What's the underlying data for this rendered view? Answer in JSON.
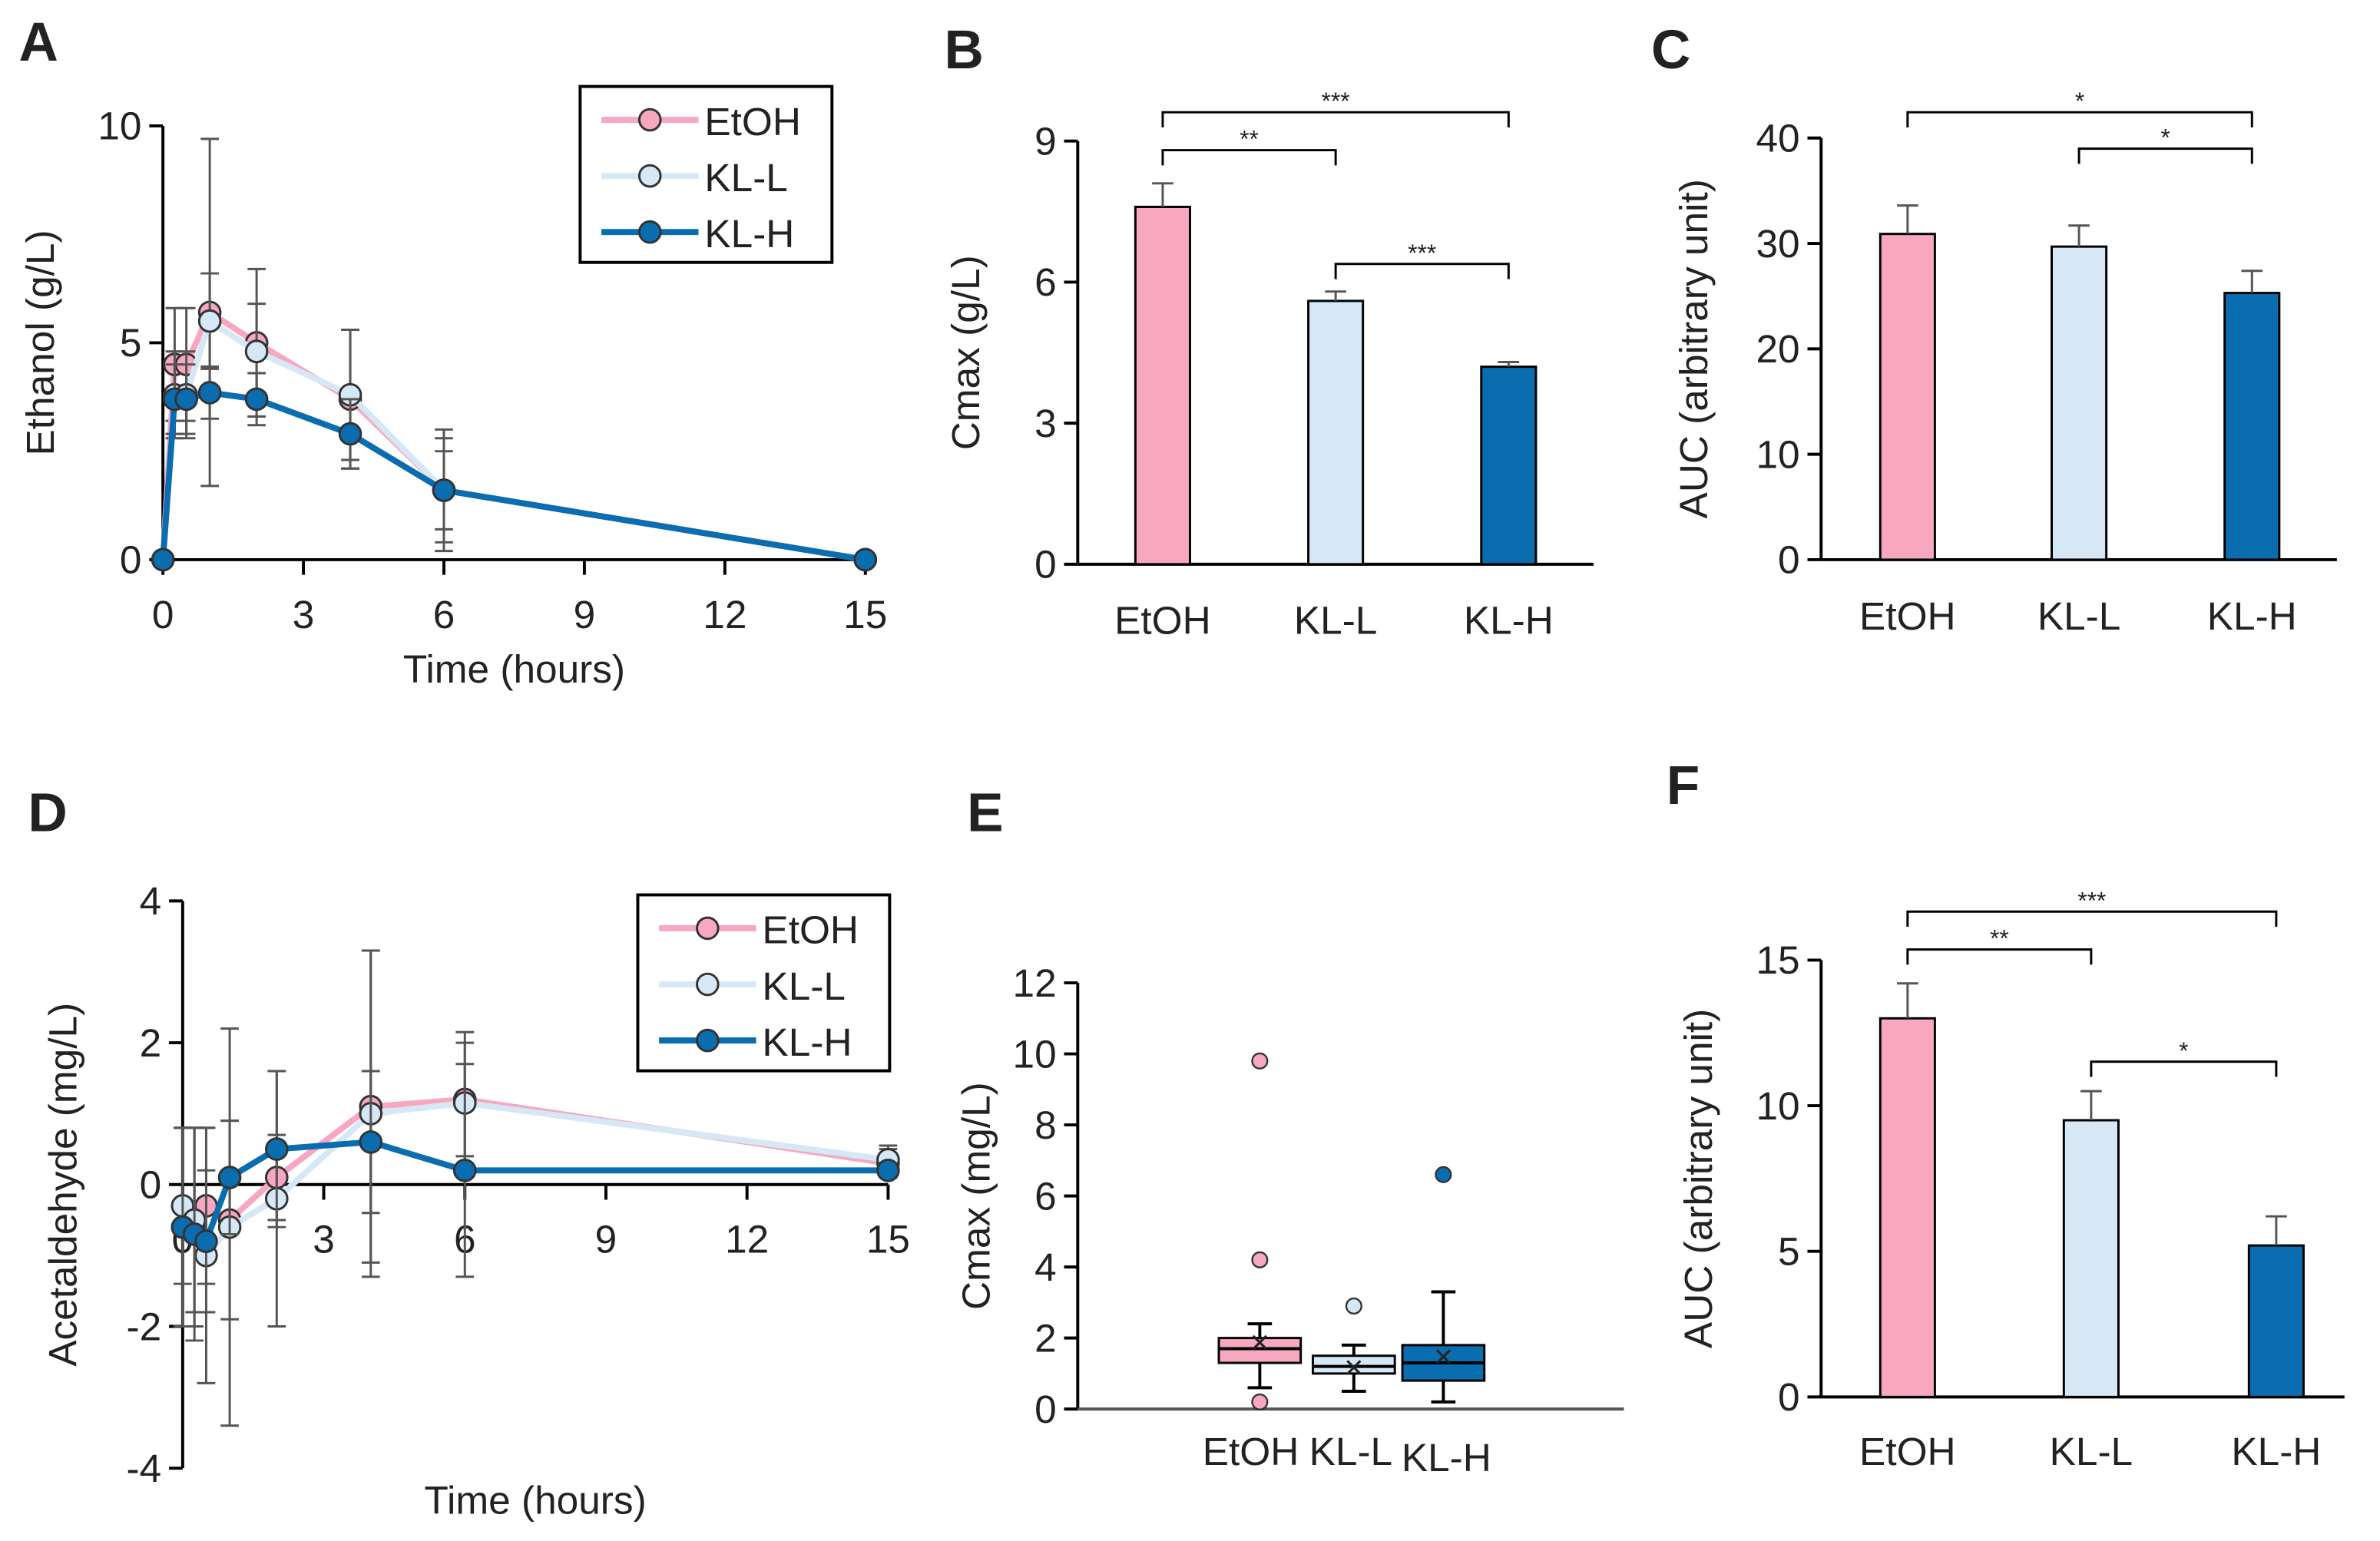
{
  "colors": {
    "EtOH": "#f7a8c0",
    "KL-L": "#d6e8f6",
    "KL-H": "#0a6db0",
    "err": "#555555"
  },
  "chart_data": [
    {
      "panel": "A",
      "type": "line",
      "xlabel": "Time (hours)",
      "ylabel": "Ethanol (g/L)",
      "xlim": [
        0,
        15
      ],
      "ylim": [
        0,
        10
      ],
      "xticks": [
        "0",
        "3",
        "6",
        "9",
        "12",
        "15"
      ],
      "yticks": [
        "0",
        "5",
        "10"
      ],
      "x": [
        0,
        0.25,
        0.5,
        1,
        2,
        4,
        6,
        15
      ],
      "series": [
        {
          "name": "EtOH",
          "values": [
            0,
            4.5,
            4.5,
            5.7,
            5.0,
            3.7,
            1.6,
            0
          ],
          "err": [
            0,
            1.3,
            1.3,
            4.0,
            1.7,
            1.6,
            1.4,
            0
          ]
        },
        {
          "name": "KL-L",
          "values": [
            0,
            3.8,
            3.8,
            5.5,
            4.8,
            3.8,
            1.6,
            0
          ],
          "err": [
            0,
            1.0,
            1.0,
            1.1,
            1.1,
            1.5,
            1.2,
            0
          ]
        },
        {
          "name": "KL-H",
          "values": [
            0,
            3.7,
            3.7,
            3.85,
            3.7,
            2.9,
            1.6,
            0
          ],
          "err": [
            0,
            0.8,
            0.8,
            0.6,
            0.6,
            0.8,
            0.9,
            0
          ]
        }
      ],
      "legend": "top-right"
    },
    {
      "panel": "B",
      "type": "bar",
      "ylabel": "Cmax (g/L)",
      "ylim": [
        0,
        9
      ],
      "yticks": [
        "0",
        "3",
        "6",
        "9"
      ],
      "categories": [
        "EtOH",
        "KL-L",
        "KL-H"
      ],
      "values": [
        7.6,
        5.6,
        4.2
      ],
      "err": [
        0.5,
        0.2,
        0.1
      ],
      "significance": [
        {
          "from": 0,
          "to": 1,
          "label": "**"
        },
        {
          "from": 0,
          "to": 2,
          "label": "***"
        },
        {
          "from": 1,
          "to": 2,
          "label": "***"
        }
      ]
    },
    {
      "panel": "C",
      "type": "bar",
      "ylabel": "AUC (arbitrary unit)",
      "ylim": [
        0,
        40
      ],
      "yticks": [
        "0",
        "10",
        "20",
        "30",
        "40"
      ],
      "categories": [
        "EtOH",
        "KL-L",
        "KL-H"
      ],
      "values": [
        30.9,
        29.7,
        25.3
      ],
      "err": [
        2.7,
        2.0,
        2.1
      ],
      "significance": [
        {
          "from": 0,
          "to": 2,
          "label": "*"
        },
        {
          "from": 1,
          "to": 2,
          "label": "*"
        }
      ]
    },
    {
      "panel": "D",
      "type": "line",
      "xlabel": "Time (hours)",
      "ylabel": "Acetaldehyde  (mg/L)",
      "xlim": [
        0,
        15
      ],
      "ylim": [
        -4,
        4
      ],
      "xticks": [
        "0",
        "3",
        "6",
        "9",
        "12",
        "15"
      ],
      "yticks": [
        "-4",
        "-2",
        "0",
        "2",
        "4"
      ],
      "x": [
        0,
        0.25,
        0.5,
        1,
        2,
        4,
        6,
        15
      ],
      "series": [
        {
          "name": "EtOH",
          "values": [
            -0.6,
            -0.6,
            -0.3,
            -0.5,
            0.1,
            1.1,
            1.2,
            0.3
          ],
          "err": [
            1.4,
            1.4,
            1.1,
            1.4,
            0.6,
            2.2,
            0.8,
            0.2
          ]
        },
        {
          "name": "KL-L",
          "values": [
            -0.3,
            -0.5,
            -1.0,
            -0.6,
            -0.2,
            1.0,
            1.15,
            0.35
          ],
          "err": [
            1.1,
            1.3,
            1.8,
            2.8,
            1.8,
            2.3,
            1.0,
            0.2
          ]
        },
        {
          "name": "KL-H",
          "values": [
            -0.6,
            -0.7,
            -0.8,
            0.1,
            0.5,
            0.6,
            0.2,
            0.2
          ],
          "err": [
            1.4,
            1.5,
            1.0,
            0.8,
            1.1,
            1.0,
            1.5,
            0.1
          ]
        }
      ],
      "legend": "top-right"
    },
    {
      "panel": "E",
      "type": "box",
      "ylabel": "Cmax (mg/L)",
      "ylim": [
        0,
        12
      ],
      "yticks": [
        "0",
        "2",
        "4",
        "6",
        "8",
        "10",
        "12"
      ],
      "categories": [
        "EtOH",
        "KL-L",
        "KL-H"
      ],
      "boxes": [
        {
          "min": 0.6,
          "q1": 1.3,
          "median": 1.7,
          "q3": 2.0,
          "max": 2.4,
          "mean": 1.9,
          "outliers": [
            4.2,
            9.8,
            0.2
          ]
        },
        {
          "min": 0.5,
          "q1": 1.0,
          "median": 1.2,
          "q3": 1.5,
          "max": 1.8,
          "mean": 1.2,
          "outliers": [
            2.9
          ]
        },
        {
          "min": 0.2,
          "q1": 0.8,
          "median": 1.3,
          "q3": 1.8,
          "max": 3.3,
          "mean": 1.5,
          "outliers": [
            6.6
          ]
        }
      ]
    },
    {
      "panel": "F",
      "type": "bar",
      "ylabel": "AUC (arbitrary unit)",
      "ylim": [
        0,
        15
      ],
      "yticks": [
        "0",
        "5",
        "10",
        "15"
      ],
      "categories": [
        "EtOH",
        "KL-L",
        "KL-H"
      ],
      "values": [
        13.0,
        9.5,
        5.2
      ],
      "err": [
        1.2,
        1.0,
        1.0
      ],
      "significance": [
        {
          "from": 0,
          "to": 1,
          "label": "**"
        },
        {
          "from": 0,
          "to": 2,
          "label": "***"
        },
        {
          "from": 1,
          "to": 2,
          "label": "*"
        }
      ]
    }
  ]
}
